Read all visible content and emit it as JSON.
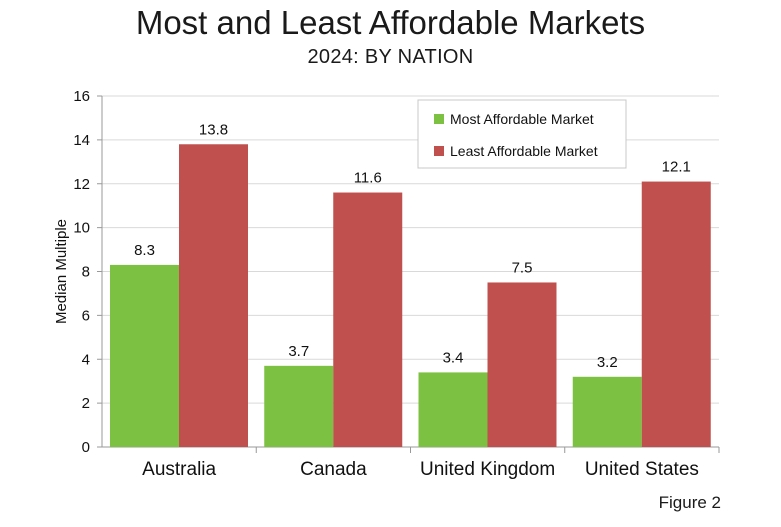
{
  "title": "Most and Least Affordable Markets",
  "subtitle": "2024: BY NATION",
  "figure_label": "Figure 2",
  "colors": {
    "most": "#7cc142",
    "least": "#c0504d",
    "grid": "#d9d9d9",
    "axis": "#999999"
  },
  "chart_data": {
    "type": "bar",
    "title": "Most and Least Affordable Markets",
    "subtitle": "2024: BY NATION",
    "xlabel": "",
    "ylabel": "Median Multiple",
    "ylim": [
      0,
      16
    ],
    "yticks": [
      0,
      2,
      4,
      6,
      8,
      10,
      12,
      14,
      16
    ],
    "grid": true,
    "legend_position": "top-right",
    "categories": [
      "Australia",
      "Canada",
      "United Kingdom",
      "United States"
    ],
    "series": [
      {
        "name": "Most Affordable Market",
        "values": [
          8.3,
          3.7,
          3.4,
          3.2
        ],
        "labels": [
          "8.3",
          "3.7",
          "3.4",
          "3.2"
        ]
      },
      {
        "name": "Least Affordable Market",
        "values": [
          13.8,
          11.6,
          7.5,
          12.1
        ],
        "labels": [
          "13.8",
          "11.6",
          "7.5",
          "12.1"
        ]
      }
    ]
  }
}
